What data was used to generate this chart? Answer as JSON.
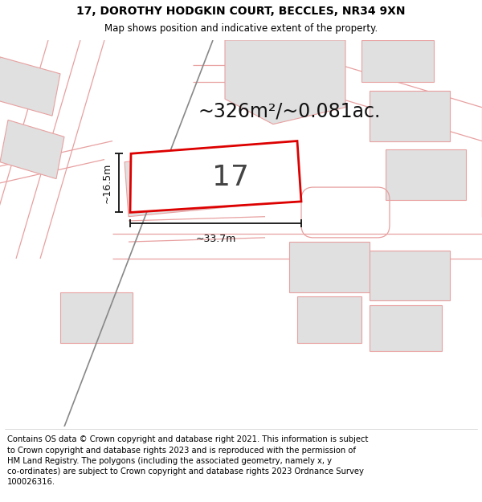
{
  "title": "17, DOROTHY HODGKIN COURT, BECCLES, NR34 9XN",
  "subtitle": "Map shows position and indicative extent of the property.",
  "footer": "Contains OS data © Crown copyright and database right 2021. This information is subject\nto Crown copyright and database rights 2023 and is reproduced with the permission of\nHM Land Registry. The polygons (including the associated geometry, namely x, y\nco-ordinates) are subject to Crown copyright and database rights 2023 Ordnance Survey\n100026316.",
  "area_label": "~326m²/~0.081ac.",
  "plot_number": "17",
  "dim_width": "~33.7m",
  "dim_height": "~16.5m",
  "map_bg": "#ffffff",
  "building_fill": "#e0e0e0",
  "building_edge": "#e8a0a0",
  "road_line_color": "#e8a0a0",
  "dark_road_color": "#888888",
  "plot_edge_color": "#dd0000",
  "dim_color": "#111111",
  "area_text_color": "#111111",
  "plot_label_color": "#444444",
  "title_fontsize": 10,
  "subtitle_fontsize": 8.5,
  "footer_fontsize": 7.2,
  "area_fontsize": 17,
  "plot_num_fontsize": 26,
  "dim_fontsize": 9
}
